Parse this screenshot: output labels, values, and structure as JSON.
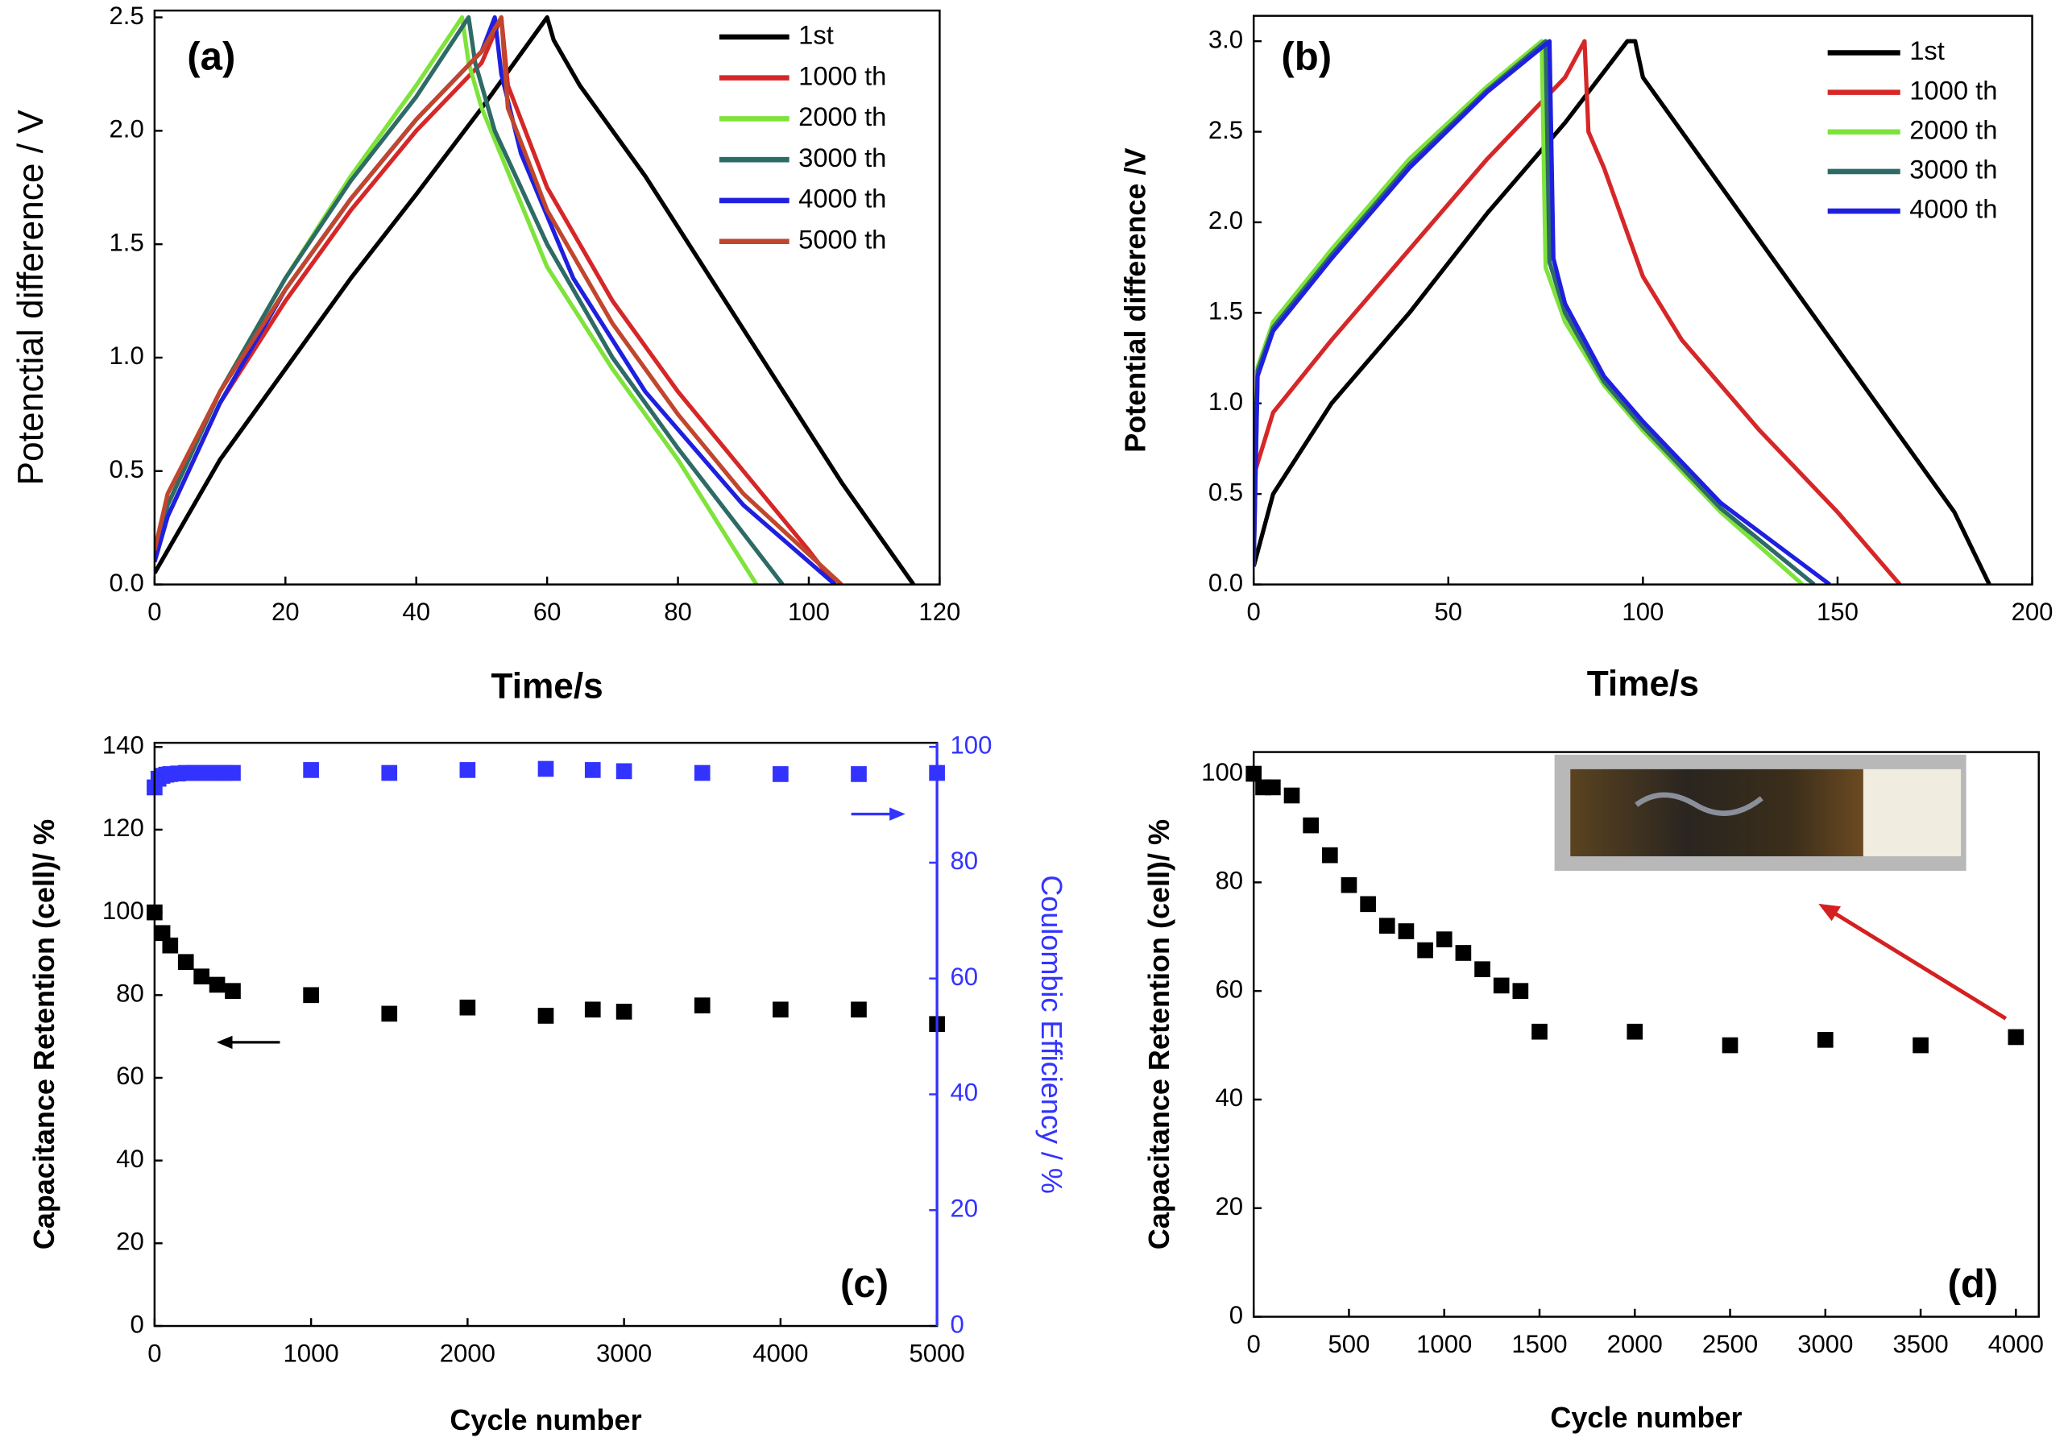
{
  "chart_data": [
    {
      "type": "line",
      "panel_label": "(a)",
      "xlabel": "Time/s",
      "ylabel": "Potenctial difference / V",
      "xlim": [
        0,
        120
      ],
      "ylim": [
        0,
        2.53
      ],
      "xticks": [
        0,
        20,
        40,
        60,
        80,
        100,
        120
      ],
      "yticks": [
        {
          "value": 0,
          "label": "0.0"
        },
        0.5,
        {
          "value": 1,
          "label": "1.0"
        },
        1.5,
        {
          "value": 2,
          "label": "2.0"
        },
        2.5
      ],
      "legend": "upper right",
      "series": [
        {
          "name": "1st",
          "color": "#000000",
          "x": [
            0,
            5,
            10,
            20,
            30,
            40,
            50,
            58,
            60,
            61,
            65,
            75,
            85,
            95,
            105,
            116
          ],
          "values": [
            0.05,
            0.3,
            0.55,
            0.95,
            1.35,
            1.72,
            2.1,
            2.42,
            2.5,
            2.4,
            2.2,
            1.8,
            1.35,
            0.9,
            0.45,
            0
          ]
        },
        {
          "name": "1000 th",
          "color": "#d62728",
          "x": [
            0,
            2,
            10,
            20,
            30,
            40,
            50,
            53,
            54,
            60,
            70,
            80,
            90,
            100,
            104
          ],
          "values": [
            0.1,
            0.3,
            0.8,
            1.25,
            1.65,
            2.0,
            2.3,
            2.5,
            2.2,
            1.75,
            1.25,
            0.85,
            0.5,
            0.15,
            0
          ]
        },
        {
          "name": "2000 th",
          "color": "#7ee33a",
          "x": [
            0,
            2,
            10,
            20,
            30,
            40,
            47,
            48,
            50,
            60,
            70,
            80,
            92
          ],
          "values": [
            0.15,
            0.35,
            0.85,
            1.35,
            1.8,
            2.2,
            2.5,
            2.3,
            2.1,
            1.4,
            0.95,
            0.55,
            0
          ]
        },
        {
          "name": "3000 th",
          "color": "#2e6b66",
          "x": [
            0,
            2,
            10,
            20,
            30,
            40,
            48,
            49,
            52,
            60,
            70,
            80,
            96
          ],
          "values": [
            0.15,
            0.35,
            0.85,
            1.35,
            1.78,
            2.15,
            2.5,
            2.3,
            2.0,
            1.5,
            1.0,
            0.6,
            0
          ]
        },
        {
          "name": "4000 th",
          "color": "#1f1fe0",
          "x": [
            0,
            2,
            10,
            20,
            30,
            40,
            50,
            52,
            53,
            56,
            64,
            75,
            90,
            104
          ],
          "values": [
            0.1,
            0.3,
            0.8,
            1.3,
            1.7,
            2.05,
            2.35,
            2.5,
            2.25,
            1.9,
            1.35,
            0.85,
            0.35,
            0
          ]
        },
        {
          "name": "5000 th",
          "color": "#c0462e",
          "x": [
            0,
            2,
            10,
            20,
            30,
            40,
            50,
            53,
            54,
            60,
            70,
            80,
            90,
            105
          ],
          "values": [
            0.15,
            0.4,
            0.85,
            1.3,
            1.7,
            2.05,
            2.35,
            2.5,
            2.1,
            1.65,
            1.15,
            0.75,
            0.4,
            0
          ]
        }
      ]
    },
    {
      "type": "line",
      "panel_label": "(b)",
      "xlabel": "Time/s",
      "ylabel": "Potential difference /V",
      "xlim": [
        0,
        200
      ],
      "ylim": [
        0,
        3.14
      ],
      "xticks": [
        0,
        50,
        100,
        150,
        200
      ],
      "yticks": [
        {
          "value": 0,
          "label": "0.0"
        },
        0.5,
        {
          "value": 1,
          "label": "1.0"
        },
        1.5,
        {
          "value": 2,
          "label": "2.0"
        },
        2.5,
        {
          "value": 3,
          "label": "3.0"
        }
      ],
      "legend": "upper right",
      "series": [
        {
          "name": "1st",
          "color": "#000000",
          "x": [
            0,
            5,
            20,
            40,
            60,
            80,
            96,
            98,
            100,
            120,
            140,
            160,
            180,
            189
          ],
          "values": [
            0.1,
            0.5,
            1.0,
            1.5,
            2.05,
            2.55,
            3.0,
            3.0,
            2.8,
            2.2,
            1.6,
            1.0,
            0.4,
            0
          ]
        },
        {
          "name": "1000 th",
          "color": "#d62728",
          "x": [
            0,
            5,
            20,
            40,
            60,
            80,
            85,
            86,
            90,
            100,
            110,
            130,
            150,
            166
          ],
          "values": [
            0.6,
            0.95,
            1.35,
            1.85,
            2.35,
            2.8,
            3.0,
            2.5,
            2.3,
            1.7,
            1.35,
            0.85,
            0.4,
            0
          ]
        },
        {
          "name": "2000 th",
          "color": "#7ee33a",
          "x": [
            0,
            1,
            5,
            20,
            40,
            60,
            74,
            75,
            80,
            90,
            100,
            120,
            141
          ],
          "values": [
            0.1,
            1.2,
            1.45,
            1.85,
            2.35,
            2.75,
            3.0,
            1.75,
            1.45,
            1.1,
            0.85,
            0.4,
            0
          ]
        },
        {
          "name": "3000 th",
          "color": "#2e6b66",
          "x": [
            0,
            1,
            5,
            20,
            40,
            60,
            75,
            76,
            80,
            90,
            100,
            120,
            144
          ],
          "values": [
            0.1,
            1.18,
            1.42,
            1.82,
            2.32,
            2.73,
            3.0,
            1.78,
            1.5,
            1.12,
            0.87,
            0.42,
            0
          ]
        },
        {
          "name": "4000 th",
          "color": "#1f1fe0",
          "x": [
            0,
            1,
            5,
            20,
            40,
            60,
            76,
            77,
            80,
            90,
            100,
            120,
            148
          ],
          "values": [
            0.1,
            1.15,
            1.4,
            1.8,
            2.3,
            2.72,
            3.0,
            1.8,
            1.55,
            1.15,
            0.9,
            0.45,
            0
          ]
        }
      ]
    },
    {
      "type": "scatter",
      "panel_label": "(c)",
      "xlabel": "Cycle number",
      "ylabel": "Capacitance Retention (cell)/ %",
      "y2label": "Coulombic Efficiency / %",
      "xlim": [
        0,
        5000
      ],
      "ylim": [
        0,
        141
      ],
      "y2lim": [
        0,
        100.7
      ],
      "xticks": [
        0,
        1000,
        2000,
        3000,
        4000,
        5000
      ],
      "yticks": [
        0,
        20,
        40,
        60,
        80,
        100,
        120,
        140
      ],
      "y2ticks": [
        0,
        20,
        40,
        60,
        80,
        100
      ],
      "series": [
        {
          "color": "#000000",
          "x": [
            0,
            50,
            100,
            200,
            300,
            400,
            500,
            1000,
            1500,
            2000,
            2500,
            2800,
            3000,
            3500,
            4000,
            4500,
            5000
          ],
          "values": [
            100,
            95,
            92,
            88,
            84.5,
            82.5,
            81,
            80,
            75.5,
            77,
            75,
            76.5,
            76,
            77.5,
            76.5,
            76.5,
            73
          ]
        },
        {
          "color": "#3333ff",
          "axis": "y2",
          "x": [
            0,
            25,
            50,
            75,
            100,
            150,
            200,
            250,
            300,
            350,
            400,
            450,
            500,
            1000,
            1500,
            2000,
            2500,
            2800,
            3000,
            3500,
            4000,
            4500,
            5000
          ],
          "values": [
            93,
            94.5,
            95,
            95.2,
            95.3,
            95.4,
            95.5,
            95.5,
            95.5,
            95.5,
            95.5,
            95.5,
            95.5,
            96,
            95.5,
            96,
            96.2,
            96,
            95.8,
            95.5,
            95.3,
            95.3,
            95.5
          ]
        }
      ]
    },
    {
      "type": "scatter",
      "panel_label": "(d)",
      "xlabel": "Cycle number",
      "ylabel": "Capacitance Retention (cell)/ %",
      "xlim": [
        0,
        4120
      ],
      "ylim": [
        0,
        104
      ],
      "xticks": [
        0,
        500,
        1000,
        1500,
        2000,
        2500,
        3000,
        3500,
        4000
      ],
      "yticks": [
        0,
        20,
        40,
        60,
        80,
        100
      ],
      "series": [
        {
          "color": "#000000",
          "x": [
            0,
            50,
            100,
            200,
            300,
            400,
            500,
            600,
            700,
            800,
            900,
            1000,
            1100,
            1200,
            1300,
            1400,
            1500,
            2000,
            2500,
            3000,
            3500,
            4000
          ],
          "values": [
            100,
            97.5,
            97.5,
            96,
            90.5,
            85,
            79.5,
            76,
            72,
            71,
            67.5,
            69.5,
            67,
            64,
            61,
            60,
            52.5,
            52.5,
            50,
            51,
            50,
            51.5
          ]
        }
      ]
    }
  ]
}
